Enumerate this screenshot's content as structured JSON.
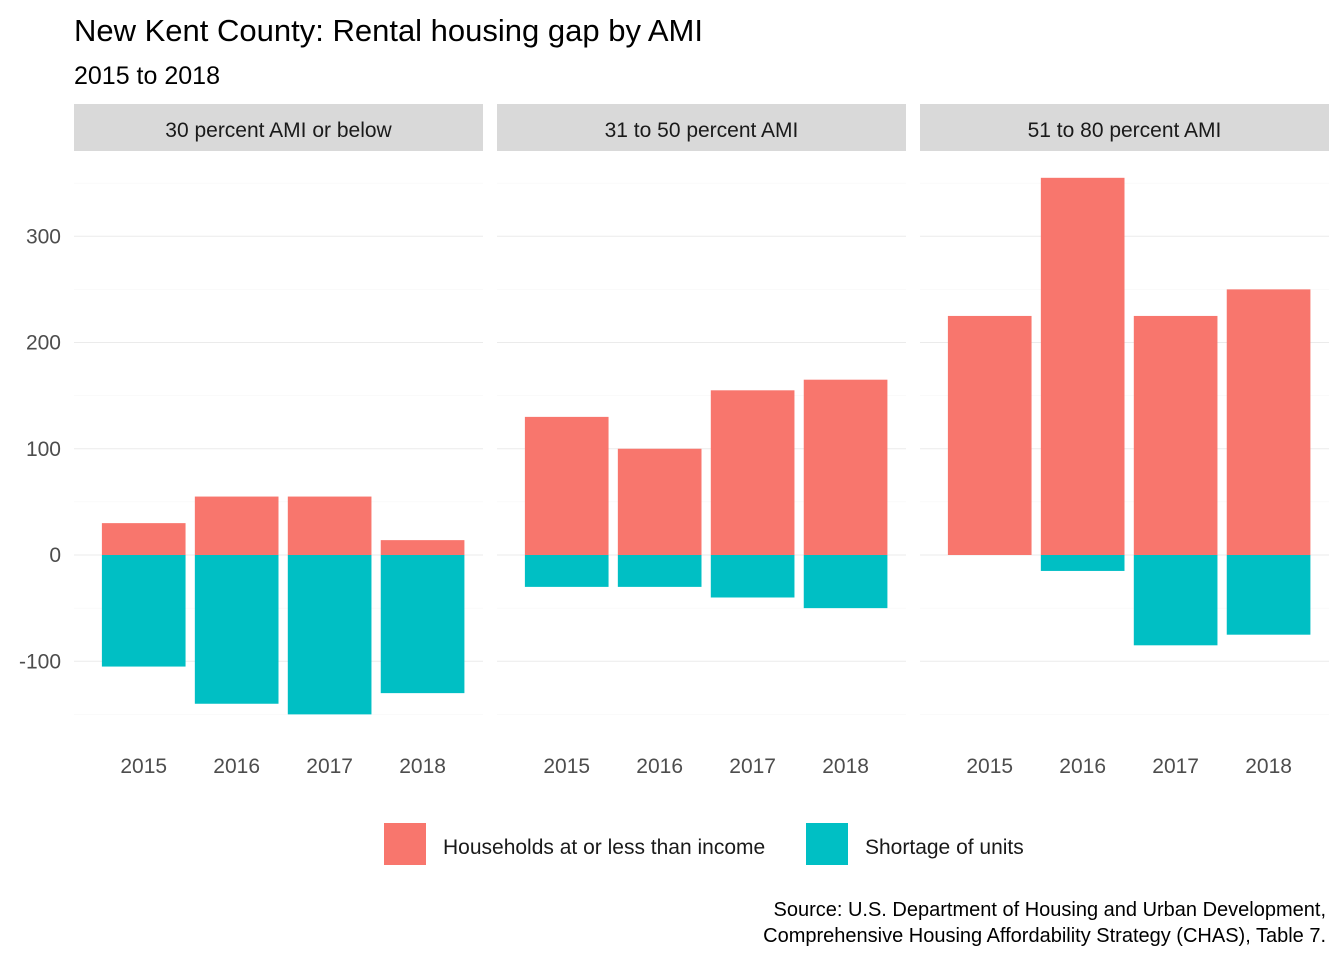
{
  "chart_data": {
    "type": "bar",
    "title": "New Kent County: Rental housing gap by AMI",
    "subtitle": "2015 to 2018",
    "caption": [
      "Source: U.S. Department of Housing and Urban Development,",
      "Comprehensive Housing Affordability Strategy (CHAS), Table 7."
    ],
    "ylim": [
      -165,
      365
    ],
    "yticks": [
      300,
      200,
      100,
      0,
      -100
    ],
    "ytick_labels": [
      "300",
      "200",
      "100",
      "0",
      "-100"
    ],
    "categories": [
      "2015",
      "2016",
      "2017",
      "2018"
    ],
    "grid": true,
    "legend_position": "bottom",
    "legend": [
      {
        "name": "Households at or less than income",
        "color": "#F8766D"
      },
      {
        "name": "Shortage of units",
        "color": "#00BFC4"
      }
    ],
    "panels": [
      {
        "label": "30 percent AMI or below",
        "series": [
          {
            "name": "Households at or less than income",
            "values": [
              30,
              55,
              55,
              14
            ]
          },
          {
            "name": "Shortage of units",
            "values": [
              -105,
              -140,
              -150,
              -130
            ]
          }
        ]
      },
      {
        "label": "31 to 50 percent AMI",
        "series": [
          {
            "name": "Households at or less than income",
            "values": [
              130,
              100,
              155,
              165
            ]
          },
          {
            "name": "Shortage of units",
            "values": [
              -30,
              -30,
              -40,
              -50
            ]
          }
        ]
      },
      {
        "label": "51 to 80 percent AMI",
        "series": [
          {
            "name": "Households at or less than income",
            "values": [
              225,
              355,
              225,
              250
            ]
          },
          {
            "name": "Shortage of units",
            "values": [
              0,
              -15,
              -85,
              -75
            ]
          }
        ]
      }
    ]
  }
}
